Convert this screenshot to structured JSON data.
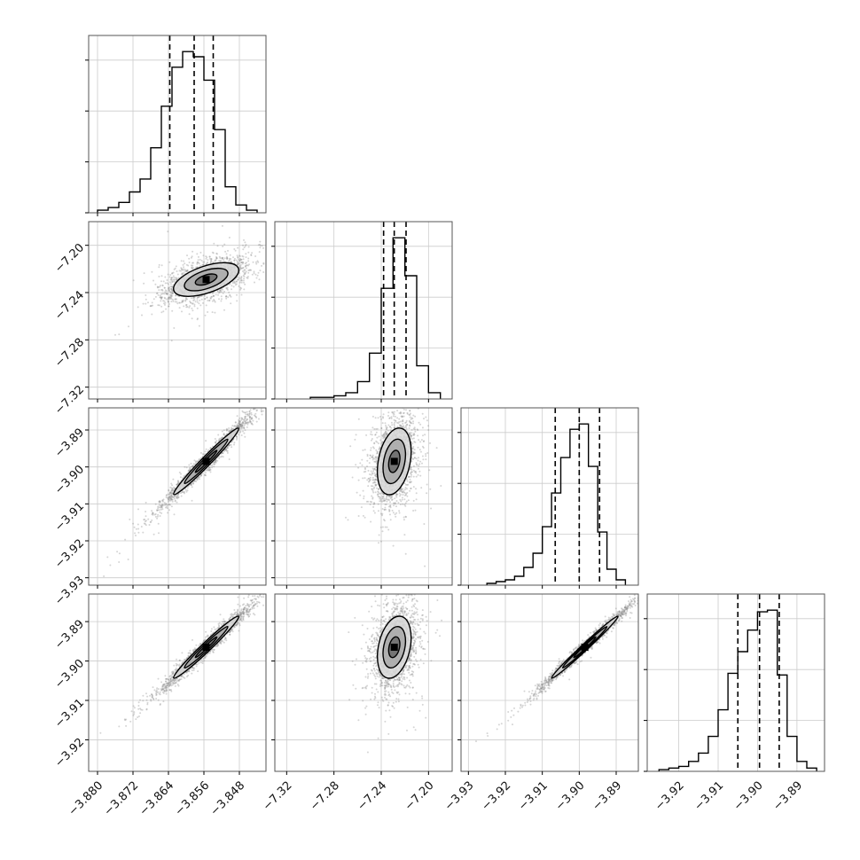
{
  "chart_data": {
    "type": "corner",
    "title": "",
    "parameters": [
      {
        "index": 0,
        "range": [
          -3.882,
          -3.842
        ],
        "ticks": [
          -3.88,
          -3.872,
          -3.864,
          -3.856,
          -3.848
        ],
        "tick_labels": [
          "−3.880",
          "−3.872",
          "−3.864",
          "−3.856",
          "−3.848"
        ],
        "quantiles": [
          -3.8637,
          -3.8582,
          -3.8539
        ],
        "histogram": {
          "bin_edges": [
            -3.88,
            -3.8776,
            -3.8752,
            -3.8728,
            -3.8704,
            -3.868,
            -3.8656,
            -3.8632,
            -3.8608,
            -3.8584,
            -3.856,
            -3.8536,
            -3.8512,
            -3.8488,
            -3.8464,
            -3.844
          ],
          "counts": [
            1,
            2,
            4,
            8,
            13,
            25,
            41,
            56,
            62,
            60,
            51,
            32,
            10,
            3,
            1
          ]
        }
      },
      {
        "index": 1,
        "range": [
          -7.33,
          -7.18
        ],
        "ticks": [
          -7.32,
          -7.28,
          -7.24,
          -7.2
        ],
        "tick_labels": [
          "−7.32",
          "−7.28",
          "−7.24",
          "−7.20"
        ],
        "quantiles": [
          -7.238,
          -7.229,
          -7.219
        ],
        "histogram": {
          "bin_edges": [
            -7.3,
            -7.29,
            -7.28,
            -7.27,
            -7.26,
            -7.25,
            -7.24,
            -7.23,
            -7.22,
            -7.21,
            -7.2,
            -7.19
          ],
          "counts": [
            1,
            1,
            2,
            4,
            11,
            29,
            70,
            102,
            78,
            21,
            4
          ]
        }
      },
      {
        "index": 2,
        "range": [
          -3.932,
          -3.884
        ],
        "ticks": [
          -3.93,
          -3.92,
          -3.91,
          -3.9,
          -3.89
        ],
        "tick_labels": [
          "−3.93",
          "−3.92",
          "−3.91",
          "−3.90",
          "−3.89"
        ],
        "quantiles": [
          -3.9065,
          -3.9,
          -3.8945
        ],
        "histogram": {
          "bin_edges": [
            -3.925,
            -3.9225,
            -3.92,
            -3.9175,
            -3.915,
            -3.9125,
            -3.91,
            -3.9075,
            -3.905,
            -3.9025,
            -3.9,
            -3.8975,
            -3.895,
            -3.8925,
            -3.89,
            -3.8875
          ],
          "counts": [
            1,
            2,
            3,
            5,
            10,
            18,
            33,
            52,
            72,
            88,
            91,
            67,
            30,
            9,
            3
          ]
        }
      },
      {
        "index": 3,
        "range": [
          -3.928,
          -3.883
        ],
        "ticks": [
          -3.92,
          -3.91,
          -3.9,
          -3.89
        ],
        "tick_labels": [
          "−3.92",
          "−3.91",
          "−3.90",
          "−3.89"
        ],
        "quantiles": [
          -3.905,
          -3.8995,
          -3.8945
        ],
        "histogram": {
          "bin_edges": [
            -3.925,
            -3.9225,
            -3.92,
            -3.9175,
            -3.915,
            -3.9125,
            -3.91,
            -3.9075,
            -3.905,
            -3.9025,
            -3.9,
            -3.8975,
            -3.895,
            -3.8925,
            -3.89,
            -3.8875,
            -3.885
          ],
          "counts": [
            1,
            2,
            3,
            6,
            11,
            21,
            37,
            59,
            72,
            85,
            96,
            97,
            58,
            21,
            6,
            2
          ]
        }
      }
    ],
    "pairs": [
      {
        "x_param": 0,
        "y_param": 1,
        "correlation": 0.55,
        "peak": [
          -3.8555,
          -7.229
        ]
      },
      {
        "x_param": 0,
        "y_param": 2,
        "correlation": 0.98,
        "peak": [
          -3.8555,
          -3.8985
        ]
      },
      {
        "x_param": 1,
        "y_param": 2,
        "correlation": 0.3,
        "peak": [
          -7.229,
          -3.8985
        ]
      },
      {
        "x_param": 0,
        "y_param": 3,
        "correlation": 0.98,
        "peak": [
          -3.8555,
          -3.8965
        ]
      },
      {
        "x_param": 1,
        "y_param": 3,
        "correlation": 0.3,
        "peak": [
          -7.229,
          -3.8965
        ]
      },
      {
        "x_param": 2,
        "y_param": 3,
        "correlation": 0.99,
        "peak": [
          -3.8985,
          -3.8965
        ]
      }
    ],
    "contour_levels_sigma": [
      0.5,
      1.0,
      1.5
    ],
    "grid": true,
    "quantile_line_style": "dashed",
    "colors": {
      "line": "#000000",
      "scatter": "#888888",
      "grid": "#cccccc",
      "axes": "#555555"
    }
  }
}
